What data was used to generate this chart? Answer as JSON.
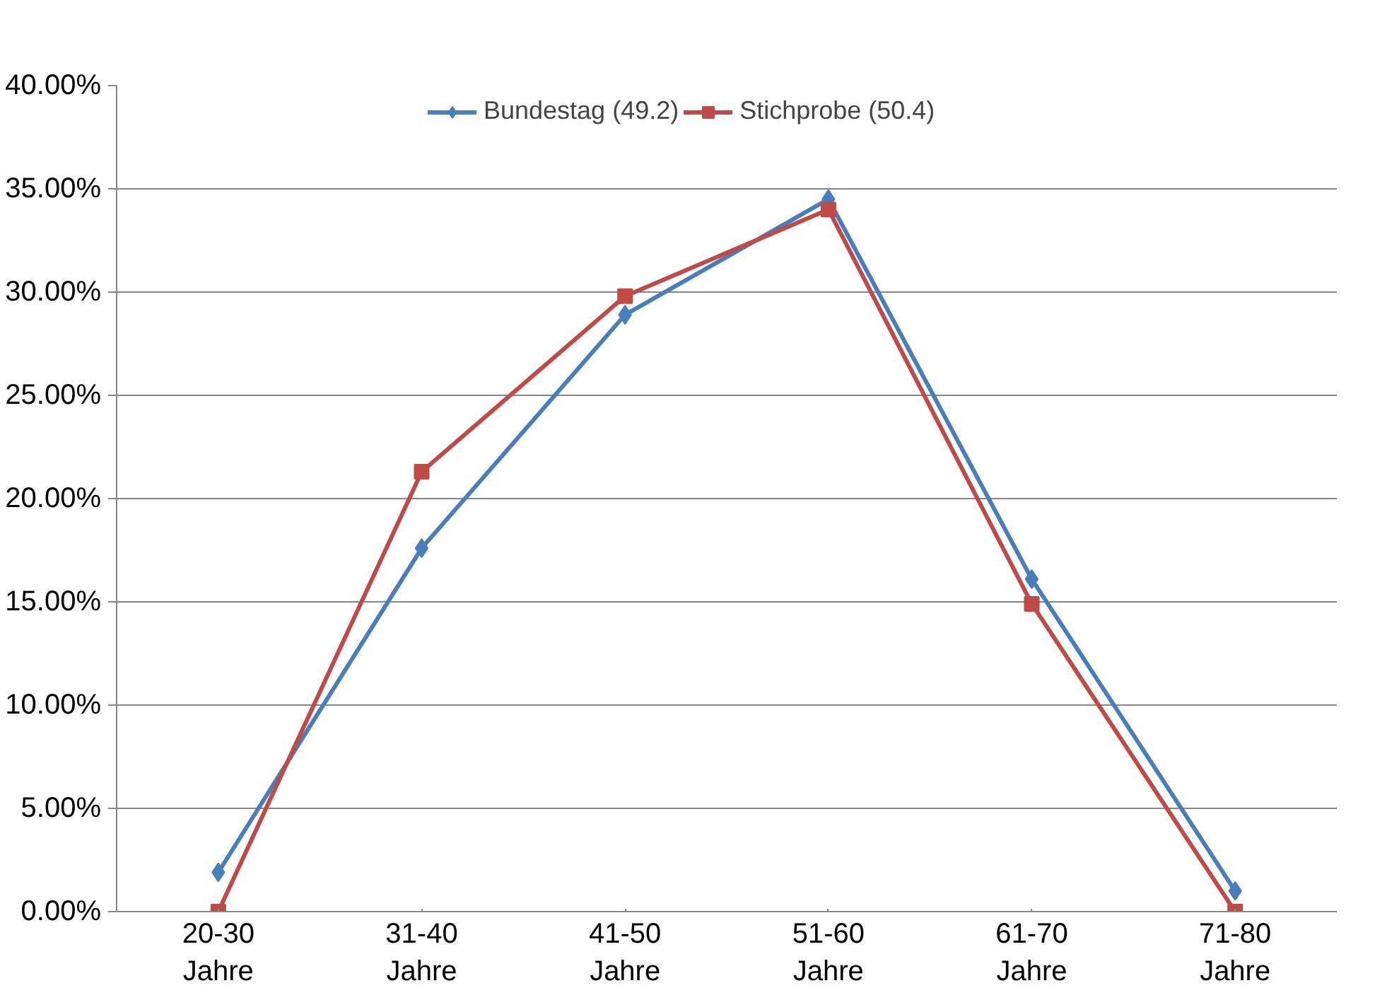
{
  "chart_data": {
    "type": "line",
    "categories": [
      "20-30\nJahre",
      "31-40\nJahre",
      "41-50\nJahre",
      "51-60\nJahre",
      "61-70\nJahre",
      "71-80\nJahre"
    ],
    "series": [
      {
        "name": "Bundestag (49.2)",
        "color": "#4a7ebb",
        "marker": "diamond",
        "values": [
          1.9,
          17.6,
          28.9,
          34.5,
          16.1,
          1.0
        ]
      },
      {
        "name": "Stichprobe (50.4)",
        "color": "#be4b48",
        "marker": "square",
        "values": [
          0.0,
          21.3,
          29.8,
          34.0,
          14.9,
          0.0
        ]
      }
    ],
    "ylim": [
      0,
      40
    ],
    "yticks": [
      {
        "value": 0,
        "label": "0.00%"
      },
      {
        "value": 5,
        "label": "5.00%"
      },
      {
        "value": 10,
        "label": "10.00%"
      },
      {
        "value": 15,
        "label": "15.00%"
      },
      {
        "value": 20,
        "label": "20.00%"
      },
      {
        "value": 25,
        "label": "25.00%"
      },
      {
        "value": 30,
        "label": "30.00%"
      },
      {
        "value": 35,
        "label": "35.00%"
      },
      {
        "value": 40,
        "label": "40.00%"
      }
    ],
    "grid": "y",
    "legend": "top",
    "line_style": "solid"
  }
}
